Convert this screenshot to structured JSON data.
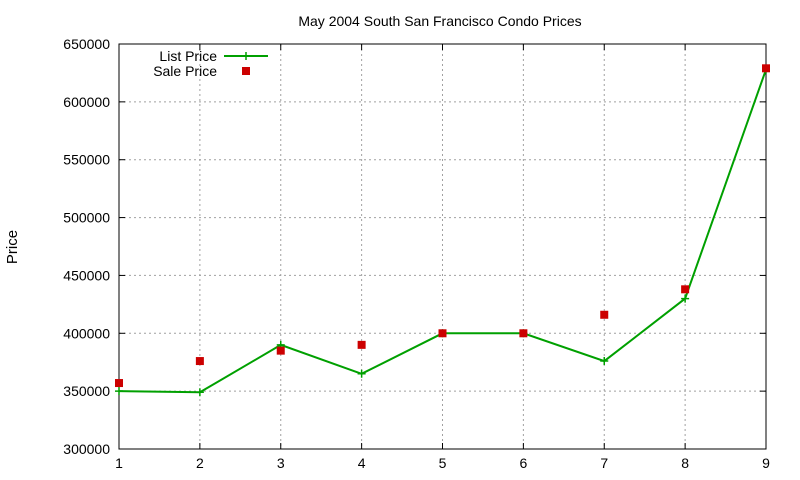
{
  "chart_data": {
    "type": "line",
    "title": "May 2004 South San Francisco Condo Prices",
    "xlabel": "",
    "ylabel": "Price",
    "x": [
      1,
      2,
      3,
      4,
      5,
      6,
      7,
      8,
      9
    ],
    "xlim": [
      1,
      9
    ],
    "ylim": [
      300000,
      650000
    ],
    "xticks": [
      "1",
      "2",
      "3",
      "4",
      "5",
      "6",
      "7",
      "8",
      "9"
    ],
    "yticks": [
      "300000",
      "350000",
      "400000",
      "450000",
      "500000",
      "550000",
      "600000",
      "650000"
    ],
    "grid": true,
    "legend_position": "top-left",
    "series": [
      {
        "name": "List Price",
        "style": "line-with-plus-markers",
        "color": "#00a000",
        "values": [
          350000,
          349000,
          390000,
          365000,
          400000,
          400000,
          376000,
          430000,
          628000
        ]
      },
      {
        "name": "Sale Price",
        "style": "square-markers",
        "color": "#cc0000",
        "values": [
          357000,
          376000,
          385000,
          390000,
          400000,
          400000,
          416000,
          438000,
          629000
        ]
      }
    ]
  }
}
